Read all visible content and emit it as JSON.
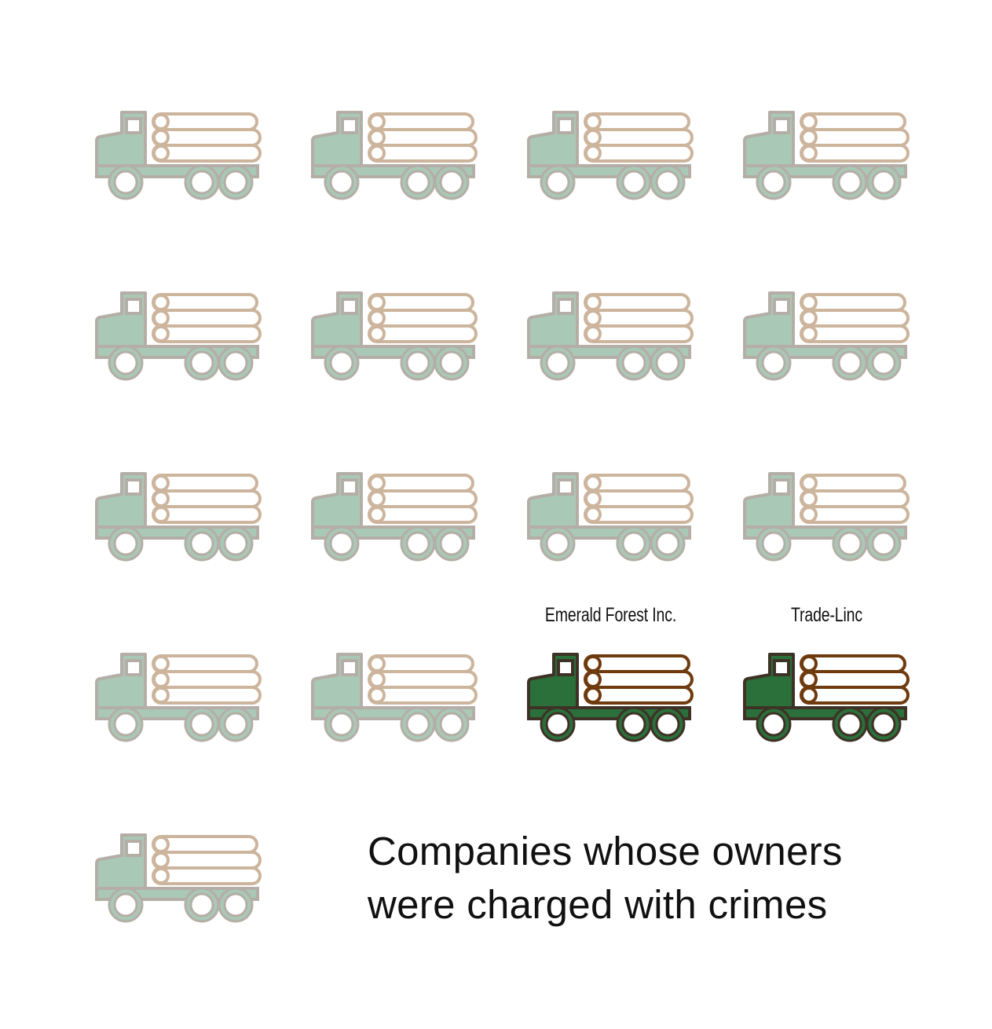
{
  "caption": {
    "line1": "Companies whose owners",
    "line2": "were charged with crimes"
  },
  "trucks": [
    {
      "label": "",
      "charged": false
    },
    {
      "label": "",
      "charged": false
    },
    {
      "label": "",
      "charged": false
    },
    {
      "label": "",
      "charged": false
    },
    {
      "label": "",
      "charged": false
    },
    {
      "label": "",
      "charged": false
    },
    {
      "label": "",
      "charged": false
    },
    {
      "label": "",
      "charged": false
    },
    {
      "label": "",
      "charged": false
    },
    {
      "label": "",
      "charged": false
    },
    {
      "label": "",
      "charged": false
    },
    {
      "label": "",
      "charged": false
    },
    {
      "label": "",
      "charged": false
    },
    {
      "label": "",
      "charged": false
    },
    {
      "label": "Emerald Forest Inc.",
      "charged": true
    },
    {
      "label": "Trade-Linc",
      "charged": true
    },
    {
      "label": "",
      "charged": false
    }
  ],
  "colors": {
    "muted_cab": "#aac8b6",
    "muted_outline": "#b4aea6",
    "muted_logs": "#cdb49c",
    "highlight_cab": "#2b6f3b",
    "highlight_outline": "#3e3226",
    "highlight_logs": "#6e3a0e"
  }
}
